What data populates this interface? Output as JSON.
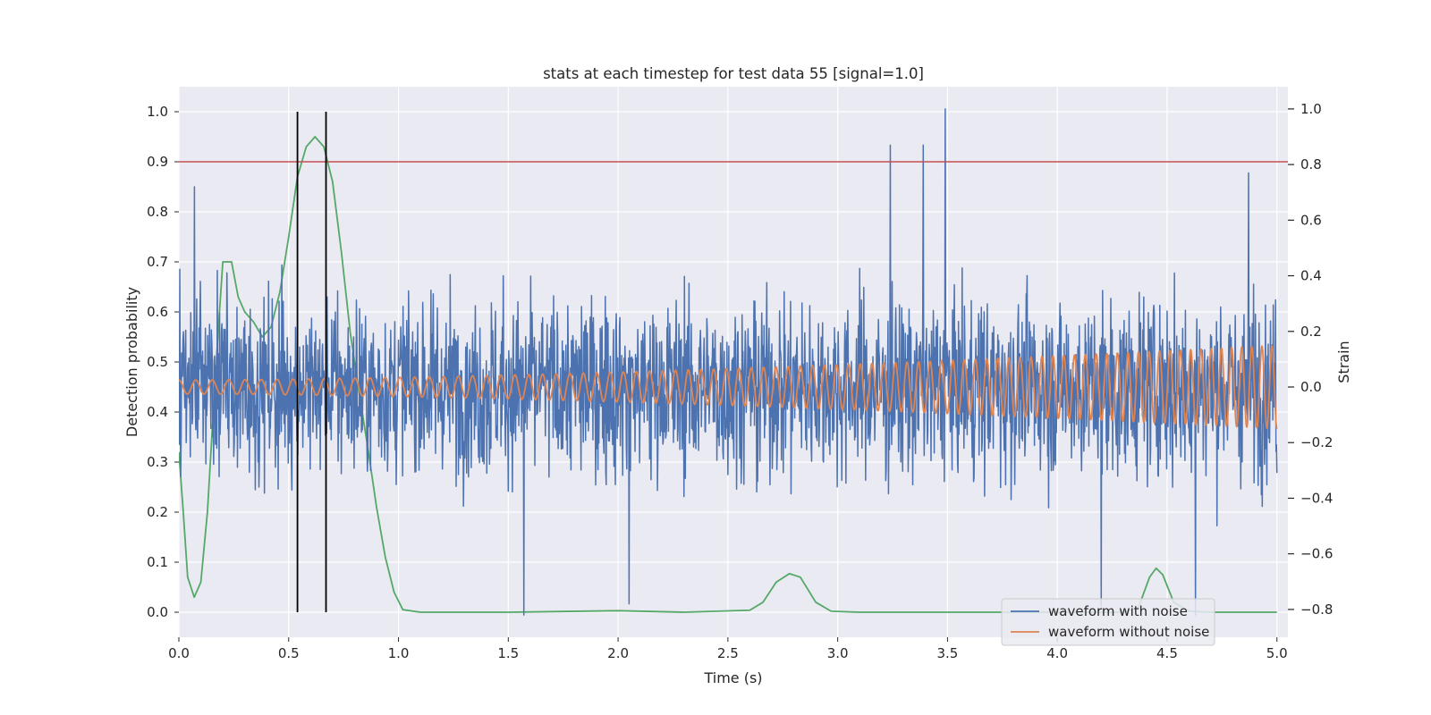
{
  "chart_data": {
    "type": "line",
    "title": "stats at each timestep for test data 55 [signal=1.0]",
    "xlabel": "Time (s)",
    "ylabel_left": "Detection probability",
    "ylabel_right": "Strain",
    "xlim": [
      0.0,
      5.05
    ],
    "ylim_left": [
      -0.05,
      1.05
    ],
    "ylim_right": [
      -0.9,
      1.08
    ],
    "x_ticks": [
      "0.0",
      "0.5",
      "1.0",
      "1.5",
      "2.0",
      "2.5",
      "3.0",
      "3.5",
      "4.0",
      "4.5",
      "5.0"
    ],
    "y_left_ticks": [
      "0.0",
      "0.1",
      "0.2",
      "0.3",
      "0.4",
      "0.5",
      "0.6",
      "0.7",
      "0.8",
      "0.9",
      "1.0"
    ],
    "y_right_ticks": [
      "−0.8",
      "−0.6",
      "−0.4",
      "−0.2",
      "0.0",
      "0.2",
      "0.4",
      "0.6",
      "0.8",
      "1.0"
    ],
    "grid": true,
    "legend_position": "bottom-right",
    "threshold": {
      "axis": "left",
      "y": 0.9,
      "color": "#c44e52"
    },
    "markers": {
      "axis": "left",
      "x": [
        0.54,
        0.67
      ],
      "y_range": [
        0.0,
        1.0
      ],
      "color": "#000000"
    },
    "series": [
      {
        "name": "waveform with noise",
        "axis": "right",
        "color": "#4c72b0",
        "generator": "noise",
        "x_range": [
          0.0,
          5.0
        ],
        "samples": 2400,
        "mean": 0.0,
        "std": 0.21,
        "peaks": [
          {
            "x": 3.49,
            "y": 1.0
          },
          {
            "x": 3.24,
            "y": 0.87
          },
          {
            "x": 3.39,
            "y": 0.87
          },
          {
            "x": 0.07,
            "y": 0.72
          },
          {
            "x": 4.87,
            "y": 0.77
          },
          {
            "x": 1.57,
            "y": -0.82
          },
          {
            "x": 2.05,
            "y": -0.78
          },
          {
            "x": 4.63,
            "y": -0.82
          },
          {
            "x": 4.2,
            "y": -0.79
          }
        ]
      },
      {
        "name": "waveform without noise",
        "axis": "right",
        "color": "#dd8452",
        "generator": "chirp",
        "x_range": [
          0.0,
          5.0
        ],
        "amplitude_start": 0.025,
        "amplitude_end": 0.15,
        "frequency_start_hz": 13.0,
        "frequency_end_hz": 22.0
      },
      {
        "name": "",
        "axis": "left",
        "color": "#55a868",
        "points": [
          [
            0.0,
            0.32
          ],
          [
            0.02,
            0.2
          ],
          [
            0.04,
            0.07
          ],
          [
            0.07,
            0.03
          ],
          [
            0.1,
            0.06
          ],
          [
            0.13,
            0.2
          ],
          [
            0.17,
            0.5
          ],
          [
            0.2,
            0.7
          ],
          [
            0.24,
            0.7
          ],
          [
            0.27,
            0.63
          ],
          [
            0.3,
            0.6
          ],
          [
            0.34,
            0.58
          ],
          [
            0.38,
            0.55
          ],
          [
            0.42,
            0.57
          ],
          [
            0.46,
            0.64
          ],
          [
            0.5,
            0.75
          ],
          [
            0.54,
            0.87
          ],
          [
            0.58,
            0.93
          ],
          [
            0.62,
            0.95
          ],
          [
            0.66,
            0.93
          ],
          [
            0.7,
            0.86
          ],
          [
            0.74,
            0.72
          ],
          [
            0.78,
            0.56
          ],
          [
            0.82,
            0.44
          ],
          [
            0.86,
            0.33
          ],
          [
            0.9,
            0.21
          ],
          [
            0.94,
            0.11
          ],
          [
            0.98,
            0.04
          ],
          [
            1.02,
            0.005
          ],
          [
            1.1,
            0.0
          ],
          [
            1.5,
            0.0
          ],
          [
            2.0,
            0.003
          ],
          [
            2.3,
            0.0
          ],
          [
            2.6,
            0.004
          ],
          [
            2.66,
            0.02
          ],
          [
            2.72,
            0.06
          ],
          [
            2.78,
            0.077
          ],
          [
            2.83,
            0.07
          ],
          [
            2.9,
            0.02
          ],
          [
            2.97,
            0.002
          ],
          [
            3.1,
            0.0
          ],
          [
            4.3,
            0.0
          ],
          [
            4.37,
            0.01
          ],
          [
            4.42,
            0.07
          ],
          [
            4.45,
            0.088
          ],
          [
            4.48,
            0.075
          ],
          [
            4.53,
            0.02
          ],
          [
            4.6,
            0.002
          ],
          [
            4.7,
            0.0
          ],
          [
            5.0,
            0.0
          ]
        ]
      }
    ]
  }
}
